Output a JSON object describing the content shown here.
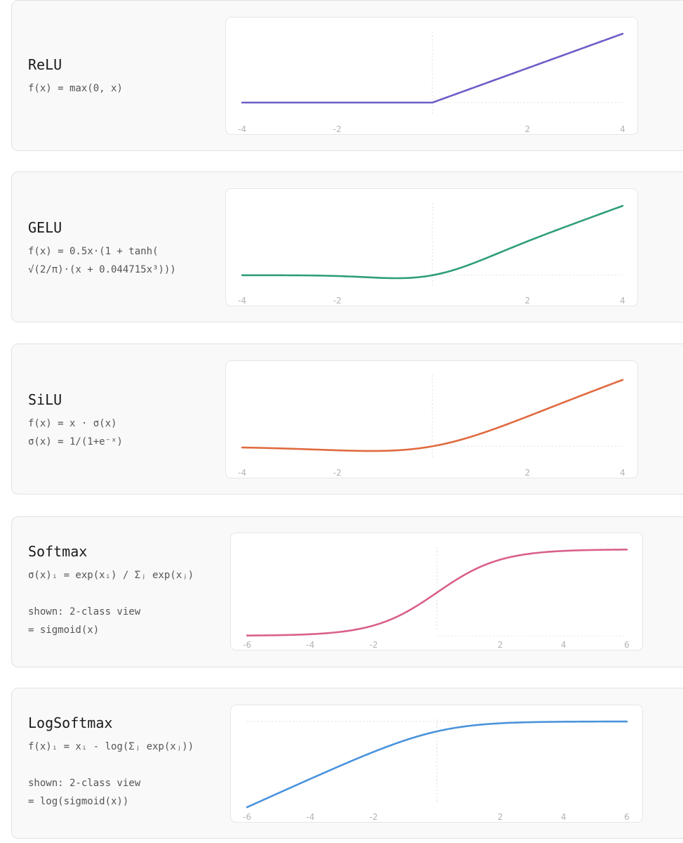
{
  "chart_data": [
    {
      "type": "line",
      "title": "ReLU",
      "formula": [
        "f(x) = max(0, x)"
      ],
      "xlim": [
        -4,
        4
      ],
      "ylim": [
        0,
        4
      ],
      "xticks": [
        -4,
        -2,
        2,
        4
      ],
      "color": "#6c5ec7",
      "fn": "relu",
      "series": [
        {
          "x": [
            -4,
            -2,
            0,
            2,
            4
          ],
          "y": [
            0,
            0,
            0,
            2,
            4
          ]
        }
      ]
    },
    {
      "type": "line",
      "title": "GELU",
      "formula": [
        "f(x) = 0.5x·(1 + tanh(",
        "√(2/π)·(x + 0.044715x³)))"
      ],
      "xlim": [
        -4,
        4
      ],
      "ylim": [
        -0.17,
        4
      ],
      "xticks": [
        -4,
        -2,
        2,
        4
      ],
      "color": "#2f9e7a",
      "fn": "gelu",
      "series": [
        {
          "x": [
            -4,
            -2,
            -0.75,
            0,
            1,
            2,
            4
          ],
          "y": [
            0,
            -0.05,
            -0.17,
            0,
            0.84,
            1.95,
            4
          ]
        }
      ]
    },
    {
      "type": "line",
      "title": "SiLU",
      "formula": [
        "f(x) = x · σ(x)",
        "σ(x) = 1/(1+e⁻ˣ)"
      ],
      "xlim": [
        -4,
        4
      ],
      "ylim": [
        -0.28,
        4
      ],
      "xticks": [
        -4,
        -2,
        2,
        4
      ],
      "color": "#e06a3f",
      "fn": "silu",
      "series": [
        {
          "x": [
            -4,
            -2,
            -1.28,
            0,
            1,
            2,
            4
          ],
          "y": [
            -0.07,
            -0.24,
            -0.28,
            0,
            0.73,
            1.76,
            3.93
          ]
        }
      ]
    },
    {
      "type": "line",
      "title": "Softmax",
      "formula": [
        "σ(x)ᵢ = exp(xᵢ) / Σⱼ exp(xⱼ)",
        "",
        "shown: 2-class view",
        "= sigmoid(x)"
      ],
      "xlim": [
        -6,
        6
      ],
      "ylim": [
        0,
        1
      ],
      "xticks": [
        -6,
        -4,
        -2,
        2,
        4,
        6
      ],
      "color": "#d9608d",
      "fn": "sigmoid",
      "series": [
        {
          "x": [
            -6,
            -4,
            -2,
            0,
            2,
            4,
            6
          ],
          "y": [
            0.0025,
            0.018,
            0.12,
            0.5,
            0.88,
            0.982,
            0.9975
          ]
        }
      ]
    },
    {
      "type": "line",
      "title": "LogSoftmax",
      "formula": [
        "f(x)ᵢ = xᵢ - log(Σⱼ exp(xⱼ))",
        "",
        "shown: 2-class view",
        "= log(sigmoid(x))"
      ],
      "xlim": [
        -6,
        6
      ],
      "ylim": [
        -6,
        0
      ],
      "xticks": [
        -6,
        -4,
        -2,
        2,
        4,
        6
      ],
      "color": "#4a93dc",
      "fn": "logsigmoid",
      "series": [
        {
          "x": [
            -6,
            -4,
            -2,
            0,
            2,
            4,
            6
          ],
          "y": [
            -6.0,
            -4.02,
            -2.13,
            -0.69,
            -0.13,
            -0.02,
            -0.0025
          ]
        }
      ]
    }
  ]
}
